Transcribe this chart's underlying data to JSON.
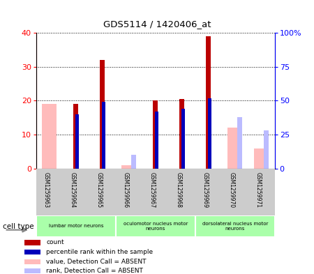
{
  "title": "GDS5114 / 1420406_at",
  "samples": [
    "GSM1259963",
    "GSM1259964",
    "GSM1259965",
    "GSM1259966",
    "GSM1259967",
    "GSM1259968",
    "GSM1259969",
    "GSM1259970",
    "GSM1259971"
  ],
  "count_present": [
    0,
    19,
    32,
    0,
    20,
    20.5,
    39,
    0,
    0
  ],
  "count_absent": [
    19,
    0,
    0,
    1,
    0,
    0,
    0,
    12,
    6
  ],
  "rank_present": [
    0,
    40,
    49,
    0,
    42,
    44,
    52,
    0,
    0
  ],
  "rank_absent": [
    0,
    0,
    0,
    10,
    0,
    0,
    0,
    38,
    28
  ],
  "left_ylim": [
    0,
    40
  ],
  "right_ylim": [
    0,
    100
  ],
  "left_yticks": [
    0,
    10,
    20,
    30,
    40
  ],
  "right_yticks": [
    0,
    25,
    50,
    75,
    100
  ],
  "right_yticklabels": [
    "0",
    "25",
    "50",
    "75",
    "100%"
  ],
  "cell_type_groups": [
    {
      "label": "lumbar motor neurons",
      "start": 0,
      "end": 3
    },
    {
      "label": "oculomotor nucleus motor\nneurons",
      "start": 3,
      "end": 6
    },
    {
      "label": "dorsolateral nucleus motor\nneurons",
      "start": 6,
      "end": 9
    }
  ],
  "count_color": "#bb0000",
  "count_absent_color": "#ffbbbb",
  "rank_color": "#0000bb",
  "rank_absent_color": "#bbbbff",
  "plot_bg_color": "#ffffff",
  "xarea_bg_color": "#cccccc",
  "legend_items": [
    {
      "label": "count",
      "color": "#bb0000"
    },
    {
      "label": "percentile rank within the sample",
      "color": "#0000bb"
    },
    {
      "label": "value, Detection Call = ABSENT",
      "color": "#ffbbbb"
    },
    {
      "label": "rank, Detection Call = ABSENT",
      "color": "#bbbbff"
    }
  ]
}
